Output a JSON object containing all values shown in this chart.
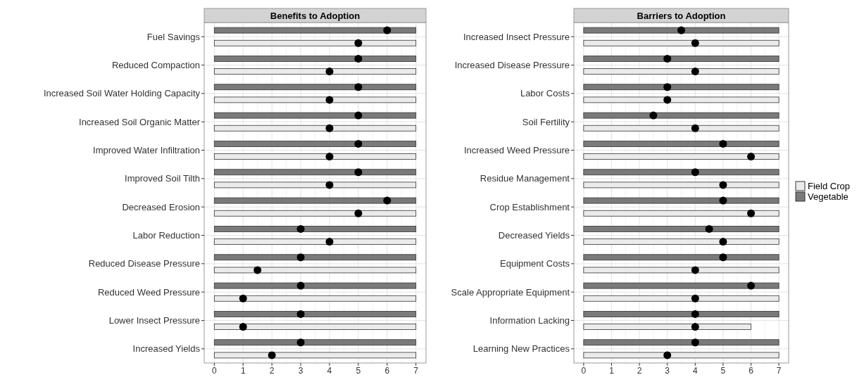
{
  "chart_data": [
    {
      "type": "bar",
      "title": "Benefits to Adoption",
      "orientation": "horizontal",
      "categories": [
        "Fuel Savings",
        "Reduced Compaction",
        "Increased Soil Water Holding Capacity",
        "Increased Soil Organic Matter",
        "Improved Water Infiltration",
        "Improved Soil Tilth",
        "Decreased Erosion",
        "Labor Reduction",
        "Reduced Disease Pressure",
        "Reduced Weed Pressure",
        "Lower Insect Pressure",
        "Increased Yields"
      ],
      "xlim": [
        -0.35,
        7.35
      ],
      "xticks": [
        0,
        1,
        2,
        3,
        4,
        5,
        6,
        7
      ],
      "grid": true,
      "marker": "circle",
      "legend": false,
      "series": [
        {
          "color": "#7a7a7a",
          "base": [
            0,
            0,
            0,
            0,
            0,
            0,
            0,
            0,
            0,
            0,
            0,
            0
          ],
          "values": [
            7,
            7,
            7,
            7,
            7,
            7,
            7,
            7,
            7,
            7,
            7,
            7
          ]
        },
        {
          "color": "#ebebeb",
          "base": [
            0,
            0,
            0,
            0,
            0,
            0,
            0,
            0,
            0,
            0,
            0,
            0
          ],
          "values": [
            7,
            7,
            7,
            7,
            7,
            7,
            7,
            7,
            7,
            7,
            7,
            7
          ]
        },
        {
          "type": "scatter",
          "color": "#000000",
          "values": [
            6,
            5,
            5,
            5,
            5,
            5,
            6,
            3,
            3,
            3,
            3,
            3
          ]
        },
        {
          "type": "scatter",
          "color": "#000000",
          "values": [
            5,
            4,
            4,
            4,
            4,
            4,
            5,
            4,
            1.5,
            1,
            1,
            2
          ]
        }
      ]
    },
    {
      "type": "bar",
      "title": "Barriers to Adoption",
      "orientation": "horizontal",
      "categories": [
        "Increased Insect Pressure",
        "Increased Disease Pressure",
        "Labor Costs",
        "Soil Fertility",
        "Increased Weed Pressure",
        "Residue Management",
        "Crop Establishment",
        "Decreased Yields",
        "Equipment Costs",
        "Scale Appropriate Equipment",
        "Information Lacking",
        "Learning New Practices"
      ],
      "xlim": [
        -0.35,
        7.35
      ],
      "xticks": [
        0,
        1,
        2,
        3,
        4,
        5,
        6,
        7
      ],
      "grid": true,
      "marker": "circle",
      "legend": "right",
      "series": [
        {
          "name": "Vegetable",
          "color": "#7a7a7a",
          "base": [
            0,
            0,
            0,
            0,
            0,
            0,
            0,
            0,
            0,
            0,
            0,
            0
          ],
          "values": [
            7,
            7,
            7,
            7,
            7,
            7,
            7,
            7,
            7,
            7,
            7,
            7
          ]
        },
        {
          "name": "Field Crop",
          "color": "#ebebeb",
          "base": [
            0,
            0,
            0,
            0,
            0,
            0,
            0,
            0,
            0,
            0,
            0,
            0
          ],
          "values": [
            7,
            7,
            7,
            7,
            7,
            7,
            7,
            7,
            7,
            7,
            6,
            7
          ]
        },
        {
          "type": "scatter",
          "color": "#000000",
          "values": [
            3.5,
            3,
            3,
            2.5,
            5,
            4,
            5,
            4.5,
            5,
            6,
            4,
            4
          ]
        },
        {
          "type": "scatter",
          "color": "#000000",
          "values": [
            4,
            4,
            3,
            4,
            6,
            5,
            6,
            5,
            4,
            4,
            4,
            3
          ]
        }
      ]
    }
  ]
}
